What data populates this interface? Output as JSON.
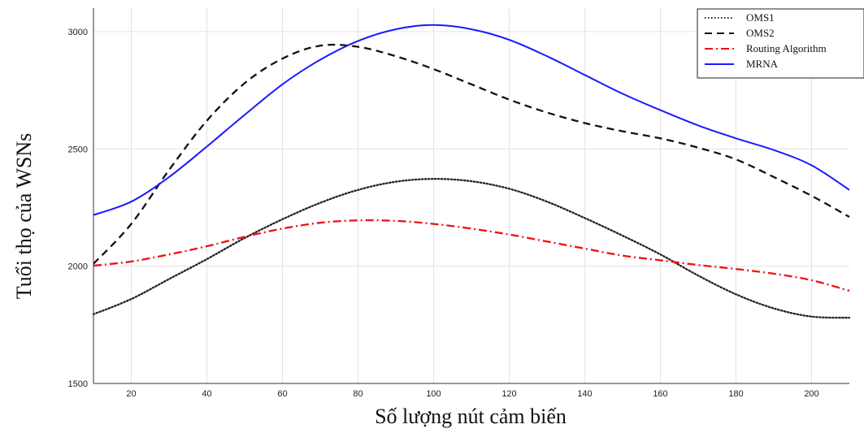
{
  "chart_data": {
    "type": "line",
    "xlabel": "Số lượng nút cảm biến",
    "ylabel": "Tuổi thọ của WSNs",
    "xlim": [
      10,
      210
    ],
    "ylim": [
      1500,
      3100
    ],
    "xticks": [
      20,
      40,
      60,
      80,
      100,
      120,
      140,
      160,
      180,
      200
    ],
    "yticks": [
      1500,
      2000,
      2500,
      3000
    ],
    "grid": true,
    "legend_position": "top-right",
    "series": [
      {
        "name": "OMS1",
        "color": "#222222",
        "style": "dotted",
        "points": [
          [
            10,
            1795
          ],
          [
            20,
            1860
          ],
          [
            30,
            1945
          ],
          [
            40,
            2030
          ],
          [
            50,
            2120
          ],
          [
            60,
            2200
          ],
          [
            70,
            2270
          ],
          [
            80,
            2325
          ],
          [
            90,
            2360
          ],
          [
            100,
            2372
          ],
          [
            110,
            2362
          ],
          [
            120,
            2330
          ],
          [
            130,
            2275
          ],
          [
            140,
            2205
          ],
          [
            150,
            2130
          ],
          [
            160,
            2050
          ],
          [
            170,
            1960
          ],
          [
            180,
            1880
          ],
          [
            190,
            1820
          ],
          [
            200,
            1785
          ],
          [
            210,
            1780
          ]
        ]
      },
      {
        "name": "OMS2",
        "color": "#111111",
        "style": "dashed",
        "points": [
          [
            10,
            2010
          ],
          [
            20,
            2180
          ],
          [
            30,
            2410
          ],
          [
            40,
            2620
          ],
          [
            50,
            2780
          ],
          [
            60,
            2885
          ],
          [
            70,
            2940
          ],
          [
            80,
            2935
          ],
          [
            90,
            2895
          ],
          [
            100,
            2840
          ],
          [
            110,
            2775
          ],
          [
            120,
            2710
          ],
          [
            130,
            2655
          ],
          [
            140,
            2610
          ],
          [
            150,
            2575
          ],
          [
            160,
            2545
          ],
          [
            170,
            2505
          ],
          [
            180,
            2455
          ],
          [
            190,
            2380
          ],
          [
            200,
            2300
          ],
          [
            210,
            2210
          ]
        ]
      },
      {
        "name": "Routing Algorithm",
        "color": "#ee1111",
        "style": "dashdot",
        "points": [
          [
            10,
            2002
          ],
          [
            20,
            2020
          ],
          [
            30,
            2050
          ],
          [
            40,
            2085
          ],
          [
            50,
            2125
          ],
          [
            60,
            2160
          ],
          [
            70,
            2185
          ],
          [
            80,
            2195
          ],
          [
            90,
            2193
          ],
          [
            100,
            2180
          ],
          [
            110,
            2160
          ],
          [
            120,
            2135
          ],
          [
            130,
            2105
          ],
          [
            140,
            2075
          ],
          [
            150,
            2045
          ],
          [
            160,
            2025
          ],
          [
            170,
            2005
          ],
          [
            180,
            1988
          ],
          [
            190,
            1968
          ],
          [
            200,
            1940
          ],
          [
            210,
            1895
          ]
        ]
      },
      {
        "name": "MRNA",
        "color": "#1a1aff",
        "style": "solid",
        "points": [
          [
            10,
            2218
          ],
          [
            20,
            2275
          ],
          [
            30,
            2380
          ],
          [
            40,
            2510
          ],
          [
            50,
            2645
          ],
          [
            60,
            2775
          ],
          [
            70,
            2880
          ],
          [
            80,
            2960
          ],
          [
            90,
            3010
          ],
          [
            100,
            3028
          ],
          [
            110,
            3010
          ],
          [
            120,
            2965
          ],
          [
            130,
            2895
          ],
          [
            140,
            2815
          ],
          [
            150,
            2735
          ],
          [
            160,
            2665
          ],
          [
            170,
            2600
          ],
          [
            180,
            2545
          ],
          [
            190,
            2495
          ],
          [
            200,
            2430
          ],
          [
            210,
            2325
          ]
        ]
      }
    ]
  }
}
